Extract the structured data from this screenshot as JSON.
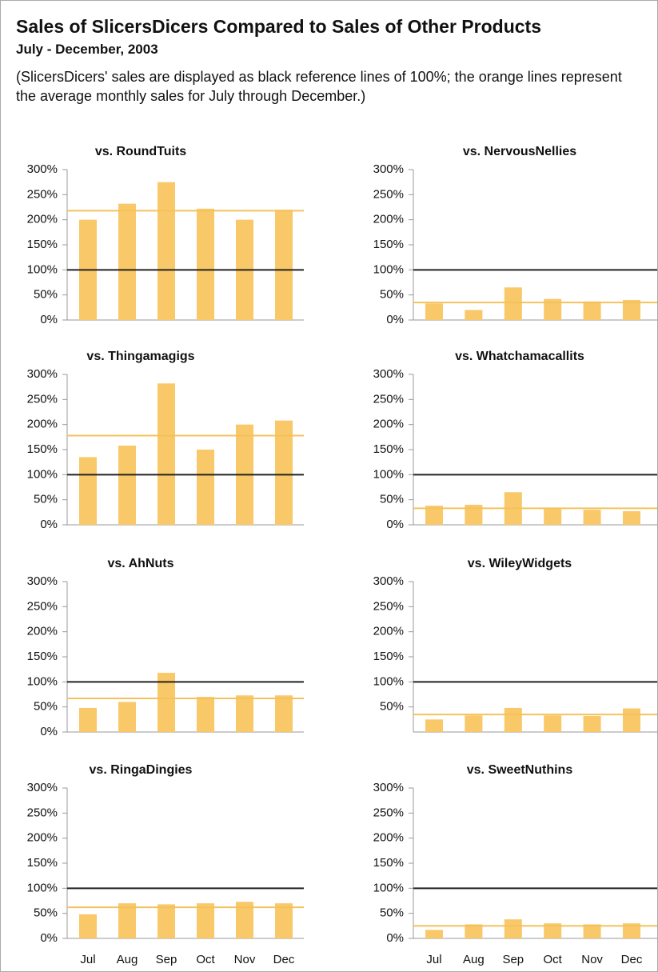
{
  "title": "Sales of SlicersDicers Compared to Sales of Other Products",
  "subtitle": "July - December, 2003",
  "note": "(SlicersDicers' sales are displayed as black reference lines of 100%; the orange lines represent the average monthly sales for July through December.)",
  "chart_data": [
    {
      "type": "bar",
      "title": "vs. RoundTuits",
      "values": [
        200,
        232,
        275,
        222,
        200,
        220
      ],
      "reference": 100,
      "average": 218,
      "color": "#f9c869",
      "reference_color": "#222222",
      "average_color": "#f3c25c",
      "ylim": [
        0,
        300
      ],
      "yticks": [
        {
          "value": 0,
          "label": "0%"
        },
        {
          "value": 50,
          "label": "50%"
        },
        {
          "value": 100,
          "label": "100%"
        },
        {
          "value": 150,
          "label": "150%"
        },
        {
          "value": 200,
          "label": "200%"
        },
        {
          "value": 250,
          "label": "250%"
        },
        {
          "value": 300,
          "label": "300%"
        }
      ]
    },
    {
      "type": "bar",
      "title": "vs. NervousNellies",
      "values": [
        33,
        20,
        65,
        42,
        37,
        40
      ],
      "reference": 100,
      "average": 35,
      "color": "#f9c869",
      "reference_color": "#222222",
      "average_color": "#f3c25c",
      "ylim": [
        0,
        300
      ],
      "yticks": [
        {
          "value": 0,
          "label": "0%"
        },
        {
          "value": 50,
          "label": "50%"
        },
        {
          "value": 100,
          "label": "100%"
        },
        {
          "value": 150,
          "label": "150%"
        },
        {
          "value": 200,
          "label": "200%"
        },
        {
          "value": 250,
          "label": "250%"
        },
        {
          "value": 300,
          "label": "300%"
        }
      ]
    },
    {
      "type": "bar",
      "title": "vs. Thingamagigs",
      "values": [
        135,
        158,
        282,
        150,
        200,
        208
      ],
      "reference": 100,
      "average": 178,
      "color": "#f9c869",
      "reference_color": "#222222",
      "average_color": "#f3c25c",
      "ylim": [
        0,
        300
      ],
      "yticks": [
        {
          "value": 0,
          "label": "0%"
        },
        {
          "value": 50,
          "label": "50%"
        },
        {
          "value": 100,
          "label": "100%"
        },
        {
          "value": 150,
          "label": "150%"
        },
        {
          "value": 200,
          "label": "200%"
        },
        {
          "value": 250,
          "label": "250%"
        },
        {
          "value": 300,
          "label": "300%"
        }
      ]
    },
    {
      "type": "bar",
      "title": "vs. Whatchamacallits",
      "values": [
        38,
        40,
        65,
        33,
        30,
        27
      ],
      "reference": 100,
      "average": 33,
      "color": "#f9c869",
      "reference_color": "#222222",
      "average_color": "#f3c25c",
      "ylim": [
        0,
        300
      ],
      "yticks": [
        {
          "value": 0,
          "label": "0%"
        },
        {
          "value": 50,
          "label": "50%"
        },
        {
          "value": 100,
          "label": "100%"
        },
        {
          "value": 150,
          "label": "150%"
        },
        {
          "value": 200,
          "label": "200%"
        },
        {
          "value": 250,
          "label": "250%"
        },
        {
          "value": 300,
          "label": "300%"
        }
      ]
    },
    {
      "type": "bar",
      "title": "vs. AhNuts",
      "values": [
        48,
        60,
        118,
        70,
        73,
        73
      ],
      "reference": 100,
      "average": 67,
      "color": "#f9c869",
      "reference_color": "#222222",
      "average_color": "#f3c25c",
      "ylim": [
        0,
        300
      ],
      "yticks": [
        {
          "value": 0,
          "label": "0%"
        },
        {
          "value": 50,
          "label": "50%"
        },
        {
          "value": 100,
          "label": "100%"
        },
        {
          "value": 150,
          "label": "150%"
        },
        {
          "value": 200,
          "label": "200%"
        },
        {
          "value": 250,
          "label": "250%"
        },
        {
          "value": 300,
          "label": "300%"
        }
      ]
    },
    {
      "type": "bar",
      "title": "vs. WileyWidgets",
      "values": [
        25,
        33,
        48,
        33,
        32,
        47
      ],
      "reference": 100,
      "average": 35,
      "color": "#f9c869",
      "reference_color": "#222222",
      "average_color": "#f3c25c",
      "ylim": [
        0,
        300
      ],
      "yticks": [
        {
          "value": 50,
          "label": "50%"
        },
        {
          "value": 100,
          "label": "100%"
        },
        {
          "value": 150,
          "label": "150%"
        },
        {
          "value": 200,
          "label": "200%"
        },
        {
          "value": 250,
          "label": "250%"
        },
        {
          "value": 300,
          "label": "300%"
        }
      ]
    },
    {
      "type": "bar",
      "title": "vs. RingaDingies",
      "categories": [
        "Jul",
        "Aug",
        "Sep",
        "Oct",
        "Nov",
        "Dec"
      ],
      "values": [
        48,
        70,
        68,
        70,
        73,
        70
      ],
      "reference": 100,
      "average": 62,
      "color": "#f9c869",
      "reference_color": "#222222",
      "average_color": "#f3c25c",
      "ylim": [
        0,
        300
      ],
      "yticks": [
        {
          "value": 0,
          "label": "0%"
        },
        {
          "value": 50,
          "label": "50%"
        },
        {
          "value": 100,
          "label": "100%"
        },
        {
          "value": 150,
          "label": "150%"
        },
        {
          "value": 200,
          "label": "200%"
        },
        {
          "value": 250,
          "label": "250%"
        },
        {
          "value": 300,
          "label": "300%"
        }
      ]
    },
    {
      "type": "bar",
      "title": "vs. SweetNuthins",
      "categories": [
        "Jul",
        "Aug",
        "Sep",
        "Oct",
        "Nov",
        "Dec"
      ],
      "values": [
        17,
        28,
        38,
        30,
        28,
        30
      ],
      "reference": 100,
      "average": 25,
      "color": "#f9c869",
      "reference_color": "#222222",
      "average_color": "#f3c25c",
      "ylim": [
        0,
        300
      ],
      "yticks": [
        {
          "value": 0,
          "label": "0%"
        },
        {
          "value": 50,
          "label": "50%"
        },
        {
          "value": 100,
          "label": "100%"
        },
        {
          "value": 150,
          "label": "150%"
        },
        {
          "value": 200,
          "label": "200%"
        },
        {
          "value": 250,
          "label": "250%"
        },
        {
          "value": 300,
          "label": "300%"
        }
      ]
    }
  ]
}
